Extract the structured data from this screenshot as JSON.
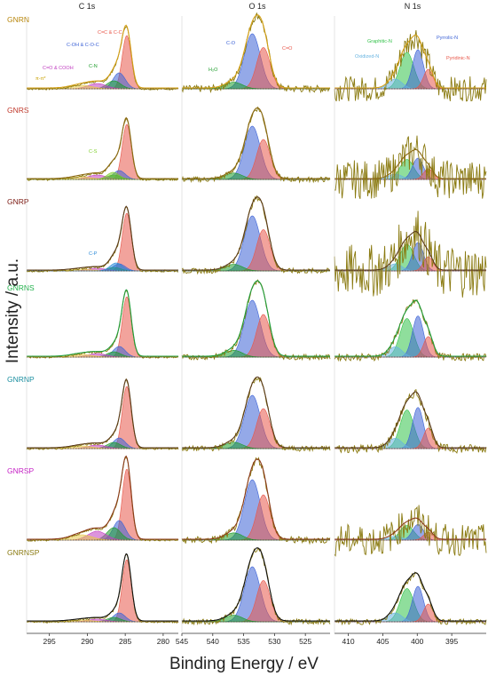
{
  "figure": {
    "xlabel": "Binding Energy / eV",
    "ylabel": "Intensity / a.u."
  },
  "chart_data": {
    "type": "line",
    "title": "",
    "xlabel": "Binding Energy / eV",
    "ylabel": "Intensity / a.u.",
    "x_axis_reversed": true,
    "legend": "none",
    "panels": [
      {
        "title": "C 1s",
        "xlim": [
          298,
          278
        ],
        "ticks": [
          295,
          290,
          285,
          280
        ]
      },
      {
        "title": "O 1s",
        "xlim": [
          545,
          521
        ],
        "ticks": [
          545,
          540,
          535,
          530,
          525
        ]
      },
      {
        "title": "N 1s",
        "xlim": [
          412,
          390
        ],
        "ticks": [
          410,
          405,
          400,
          395
        ]
      }
    ],
    "samples": [
      {
        "name": "GNRN",
        "color": "#b8860b"
      },
      {
        "name": "GNRS",
        "color": "#c0392b"
      },
      {
        "name": "GNRP",
        "color": "#7b1a12"
      },
      {
        "name": "GNRNS",
        "color": "#22b14c"
      },
      {
        "name": "GNRNP",
        "color": "#1b8fa0"
      },
      {
        "name": "GNRSP",
        "color": "#c51fc5"
      },
      {
        "name": "GNRNSP",
        "color": "#8a7a10"
      }
    ],
    "components": {
      "C 1s": [
        {
          "label": "C=C & C-C",
          "center": 284.8,
          "color": "#e8574a"
        },
        {
          "label": "C-OH & C-O-C",
          "center": 285.8,
          "color": "#3d63d6"
        },
        {
          "label": "C-N",
          "center": 286.5,
          "color": "#1c9c2a"
        },
        {
          "label": "C=O & COOH",
          "center": 288.7,
          "color": "#c03dc0"
        },
        {
          "label": "π-π*",
          "center": 290.8,
          "color": "#e6c74a"
        },
        {
          "label": "C-S",
          "center": 286.6,
          "color": "#7ed02a"
        },
        {
          "label": "C-P",
          "center": 286.2,
          "color": "#2a8ad8"
        }
      ],
      "O 1s": [
        {
          "label": "C-O",
          "center": 533.6,
          "color": "#3d63d6"
        },
        {
          "label": "C=O",
          "center": 531.8,
          "color": "#e8574a"
        },
        {
          "label": "H₂O",
          "center": 536.6,
          "color": "#1c9c2a"
        }
      ],
      "N 1s": [
        {
          "label": "Graphitic-N",
          "center": 401.5,
          "color": "#33c24a"
        },
        {
          "label": "Pyrrolic-N",
          "center": 399.9,
          "color": "#3d63d6"
        },
        {
          "label": "Oxidized-N",
          "center": 403.2,
          "color": "#66b3e0"
        },
        {
          "label": "Pyridinic-N",
          "center": 398.4,
          "color": "#e8574a"
        }
      ]
    },
    "annotations": [
      {
        "sample": "GNRN",
        "panel": "C 1s",
        "text": "C=C  &  C-C",
        "color": "#e8574a"
      },
      {
        "sample": "GNRN",
        "panel": "C 1s",
        "text": "C-OH & C-O-C",
        "color": "#3d63d6"
      },
      {
        "sample": "GNRN",
        "panel": "C 1s",
        "text": "C-N",
        "color": "#1c9c2a"
      },
      {
        "sample": "GNRN",
        "panel": "C 1s",
        "text": "C=O & COOH",
        "color": "#c03dc0"
      },
      {
        "sample": "GNRN",
        "panel": "C 1s",
        "text": "π-π*",
        "color": "#c9a000"
      },
      {
        "sample": "GNRN",
        "panel": "O 1s",
        "text": "C-O",
        "color": "#3d63d6"
      },
      {
        "sample": "GNRN",
        "panel": "O 1s",
        "text": "C=O",
        "color": "#e8574a"
      },
      {
        "sample": "GNRN",
        "panel": "O 1s",
        "text": "H₂O",
        "color": "#1c9c2a"
      },
      {
        "sample": "GNRN",
        "panel": "N 1s",
        "text": "Graphitic-N",
        "color": "#33c24a"
      },
      {
        "sample": "GNRN",
        "panel": "N 1s",
        "text": "Pyrrolic-N",
        "color": "#3d63d6"
      },
      {
        "sample": "GNRN",
        "panel": "N 1s",
        "text": "Oxidized-N",
        "color": "#66b3e0"
      },
      {
        "sample": "GNRN",
        "panel": "N 1s",
        "text": "Pyridinic-N",
        "color": "#e8574a"
      },
      {
        "sample": "GNRS",
        "panel": "C 1s",
        "text": "C-S",
        "color": "#7ed02a"
      },
      {
        "sample": "GNRP",
        "panel": "C 1s",
        "text": "C-P",
        "color": "#2a8ad8"
      }
    ]
  }
}
